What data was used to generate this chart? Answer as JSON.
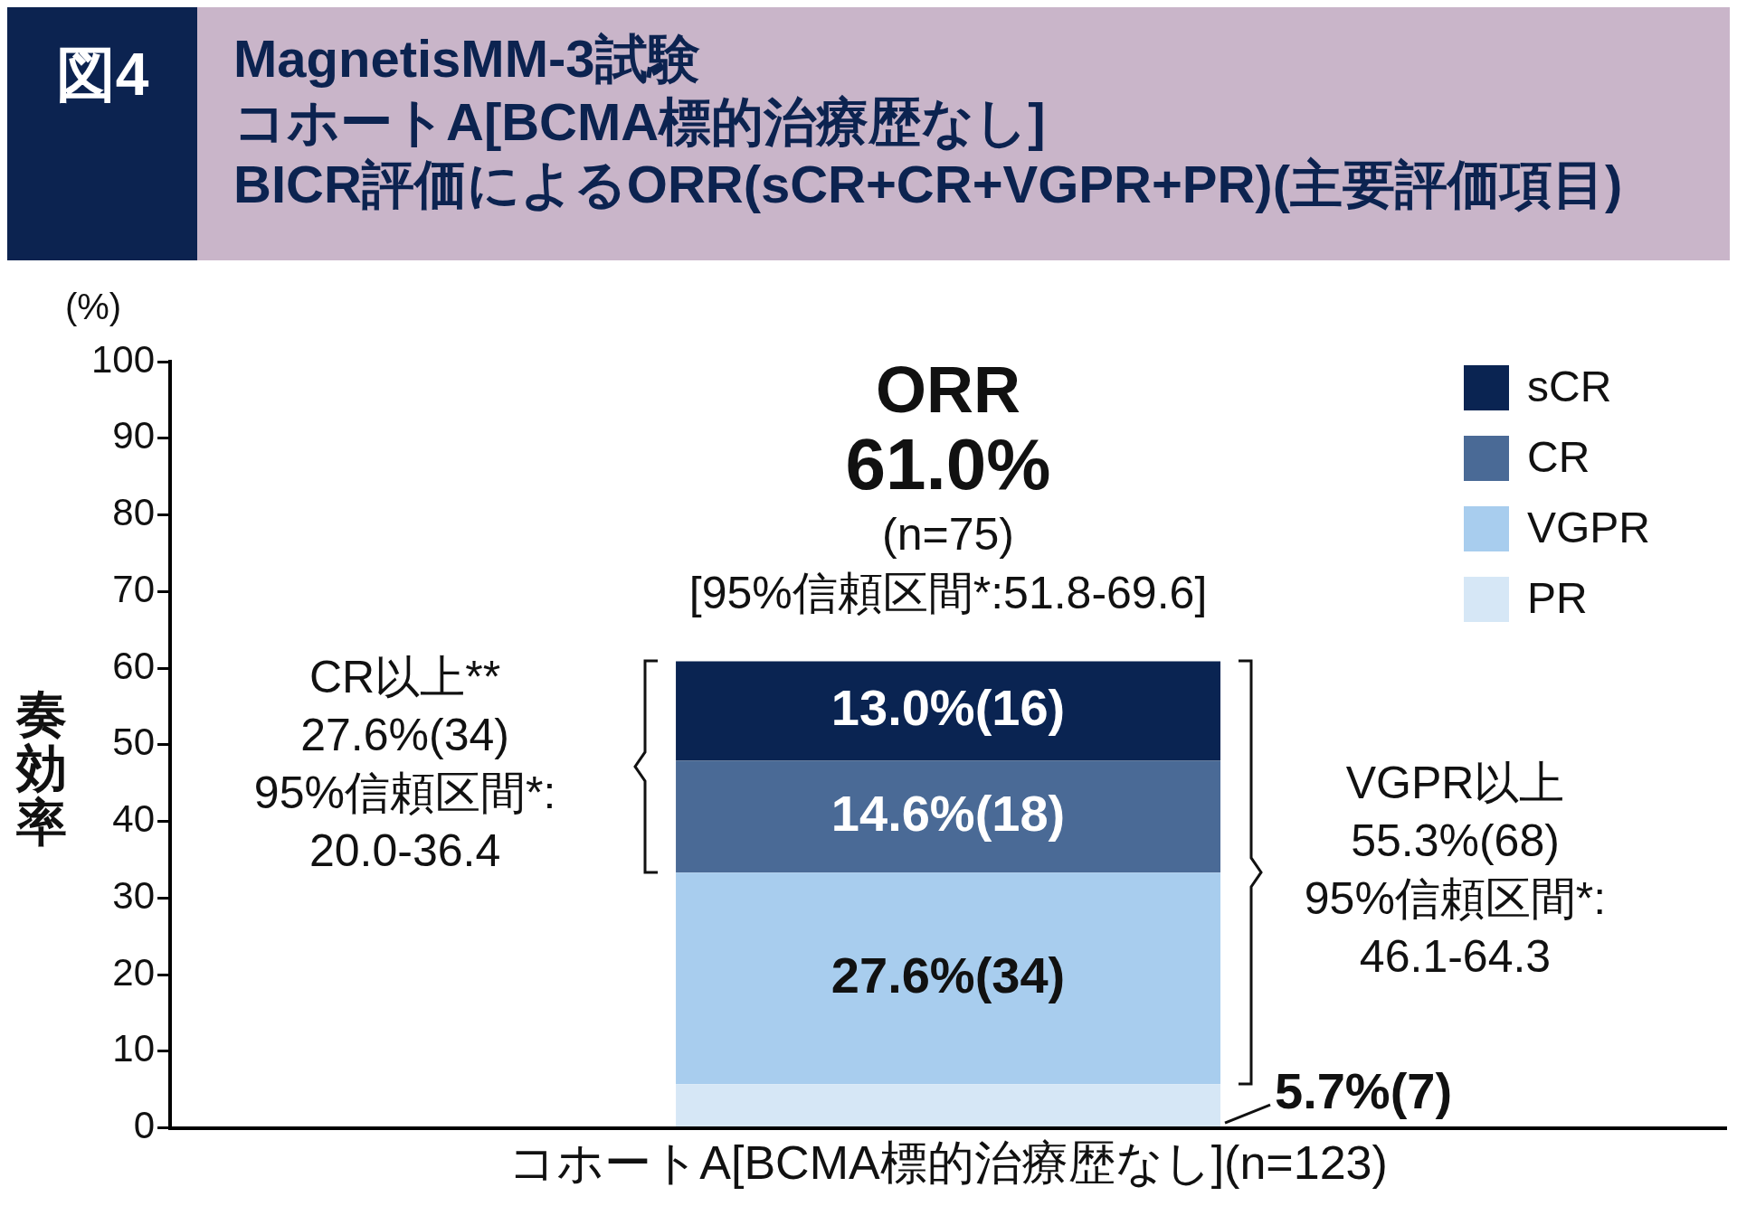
{
  "chart_data": {
    "type": "bar",
    "title": "MagnetisMM-3試験",
    "subtitle": "コホートA[BCMA標的治療歴なし]",
    "ylabel": "奏効率",
    "categories": [
      "コホートA[BCMA標的治療歴なし](n=123)"
    ],
    "stacked": true,
    "ylim": [
      0,
      100
    ],
    "yticks": [
      0,
      10,
      20,
      30,
      40,
      50,
      60,
      70,
      80,
      90,
      100
    ],
    "grid": false,
    "legend": "top right",
    "series": [
      {
        "name": "PR",
        "color": "#d6e7f6",
        "values": [
          5.7
        ],
        "value_labels": [
          "5.7%(7)"
        ]
      },
      {
        "name": "VGPR",
        "color": "#a8cdee",
        "values": [
          27.6
        ],
        "value_labels": [
          "27.6%(34)"
        ]
      },
      {
        "name": "CR",
        "color": "#4a6a96",
        "values": [
          14.6
        ],
        "value_labels": [
          "14.6%(18)"
        ]
      },
      {
        "name": "sCR",
        "color": "#0a2452",
        "values": [
          13.0
        ],
        "value_labels": [
          "13.0%(16)"
        ]
      }
    ],
    "annotations": [
      "図4",
      "(%)",
      "ORR\n61.0%\n(n=75)\n[95%信頼区間*:51.8-69.6]",
      "CR以上**\n27.6%(34)\n95%信頼区間*:\n20.0-36.4",
      "VGPR以上\n55.3%(68)\n95%信頼区間*:\n46.1-64.3",
      "BICR評価によるORR(sCR+CR+VGPR+PR)(主要評価項目)"
    ]
  }
}
